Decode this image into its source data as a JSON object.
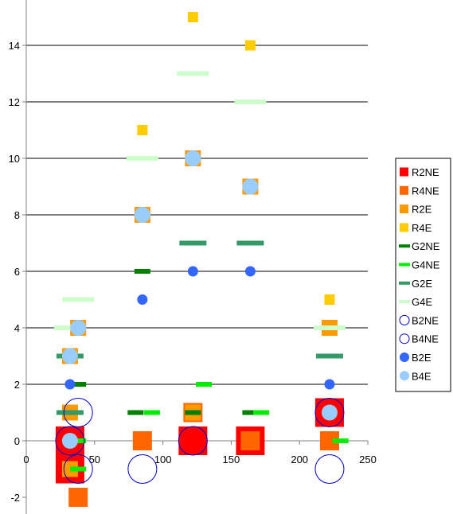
{
  "chart_data": {
    "type": "scatter",
    "title": "",
    "xlabel": "",
    "ylabel": "",
    "xlim": [
      0,
      250
    ],
    "ylim": [
      -2,
      15
    ],
    "x_ticks": [
      0,
      50,
      100,
      150,
      200,
      250
    ],
    "y_ticks": [
      -2,
      0,
      2,
      4,
      6,
      8,
      10,
      12,
      14
    ],
    "grid": "horizontal",
    "legend_position": "right",
    "series": [
      {
        "name": "R2NE",
        "marker": "square",
        "filled": true,
        "color": "#ff0000",
        "points": [
          [
            32,
            0
          ],
          [
            32,
            -1
          ],
          [
            122,
            0
          ],
          [
            164,
            0
          ],
          [
            222,
            1
          ]
        ]
      },
      {
        "name": "R4NE",
        "marker": "square",
        "filled": true,
        "color": "#ff6600",
        "points": [
          [
            38,
            -2
          ],
          [
            85,
            0
          ],
          [
            122,
            1
          ],
          [
            164,
            0
          ],
          [
            222,
            0
          ]
        ]
      },
      {
        "name": "R2E",
        "marker": "square",
        "filled": true,
        "color": "#ff9900",
        "points": [
          [
            32,
            1
          ],
          [
            32,
            3
          ],
          [
            38,
            4
          ],
          [
            32,
            -1
          ],
          [
            85,
            8
          ],
          [
            122,
            10
          ],
          [
            122,
            1
          ],
          [
            164,
            9
          ],
          [
            222,
            4
          ]
        ]
      },
      {
        "name": "R4E",
        "marker": "square",
        "filled": true,
        "color": "#ffcc00",
        "points": [
          [
            85,
            11
          ],
          [
            122,
            15
          ],
          [
            164,
            14
          ],
          [
            222,
            5
          ]
        ]
      },
      {
        "name": "G2NE",
        "marker": "dash",
        "color": "#008000",
        "points": [
          [
            38,
            2
          ],
          [
            85,
            6
          ],
          [
            80,
            1
          ],
          [
            122,
            1
          ],
          [
            164,
            1
          ],
          [
            222,
            1
          ]
        ]
      },
      {
        "name": "G4NE",
        "marker": "dash",
        "color": "#00ee00",
        "points": [
          [
            38,
            -1
          ],
          [
            38,
            0
          ],
          [
            92,
            1
          ],
          [
            130,
            2
          ],
          [
            172,
            1
          ],
          [
            230,
            0
          ]
        ]
      },
      {
        "name": "G2E",
        "marker": "dash",
        "color": "#339966",
        "points": [
          [
            32,
            3
          ],
          [
            32,
            1
          ],
          [
            122,
            7
          ],
          [
            164,
            7
          ],
          [
            222,
            3
          ]
        ]
      },
      {
        "name": "G4E",
        "marker": "dash",
        "color": "#ccffcc",
        "points": [
          [
            38,
            5
          ],
          [
            32,
            4
          ],
          [
            85,
            10
          ],
          [
            122,
            13
          ],
          [
            164,
            12
          ],
          [
            222,
            4
          ]
        ]
      },
      {
        "name": "B2NE",
        "marker": "circle",
        "filled": false,
        "color": "#0000cc",
        "points": [
          [
            32,
            0
          ],
          [
            85,
            -1
          ],
          [
            222,
            -1
          ]
        ]
      },
      {
        "name": "B4NE",
        "marker": "circle",
        "filled": false,
        "color": "#0000cc",
        "points": [
          [
            38,
            1
          ],
          [
            38,
            -1
          ],
          [
            122,
            0
          ],
          [
            222,
            1
          ]
        ]
      },
      {
        "name": "B2E",
        "marker": "circle",
        "filled": true,
        "color": "#3366ff",
        "points": [
          [
            32,
            2
          ],
          [
            85,
            5
          ],
          [
            122,
            6
          ],
          [
            164,
            6
          ],
          [
            222,
            2
          ]
        ]
      },
      {
        "name": "B4E",
        "marker": "circle",
        "filled": true,
        "color": "#99ccff",
        "points": [
          [
            32,
            0
          ],
          [
            32,
            3
          ],
          [
            38,
            4
          ],
          [
            85,
            8
          ],
          [
            122,
            10
          ],
          [
            164,
            9
          ],
          [
            222,
            1
          ]
        ]
      }
    ]
  }
}
